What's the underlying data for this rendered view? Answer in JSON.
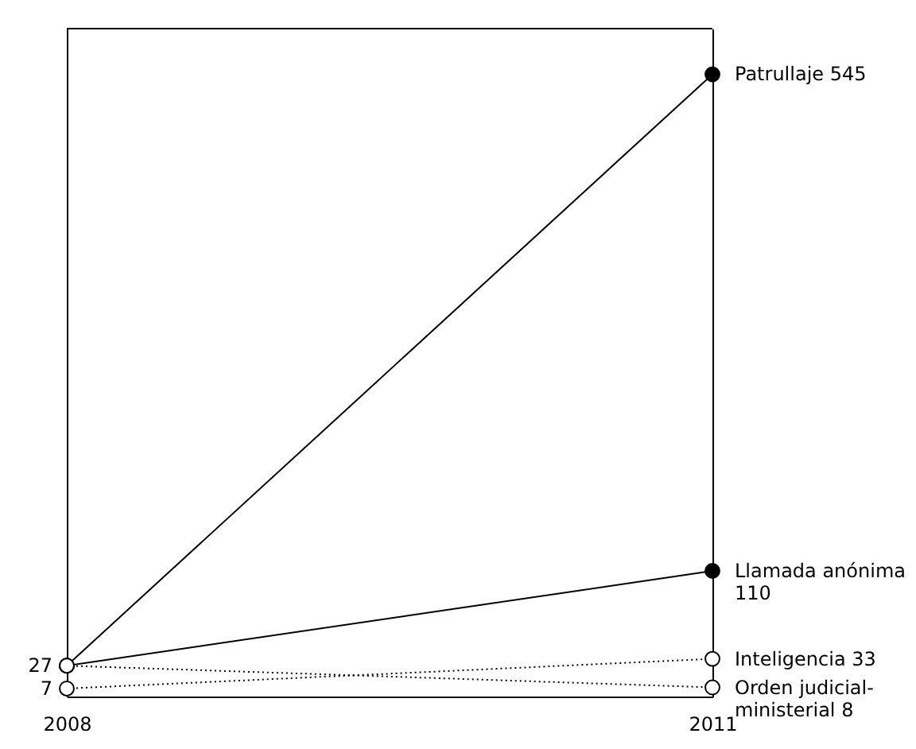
{
  "chart_data": {
    "type": "line",
    "categories": [
      "2008",
      "2011"
    ],
    "ylim": [
      0,
      585
    ],
    "tick_labels": "x",
    "grid": "x",
    "marker": "circle",
    "series": [
      {
        "name": "Patrullaje",
        "color": "#000000",
        "line_style": "solid",
        "values": [
          27,
          545
        ],
        "value_labels": [
          null,
          "545"
        ]
      },
      {
        "name": "Llamada anónima",
        "color": "#000000",
        "line_style": "solid",
        "values": [
          27,
          110
        ],
        "value_labels": [
          null,
          "110"
        ]
      },
      {
        "name": "Inteligencia",
        "color": "#000000",
        "line_style": "dotted",
        "values": [
          7,
          33
        ],
        "value_labels": [
          "7",
          "33"
        ]
      },
      {
        "name": "Orden judicial-ministerial",
        "color": "#000000",
        "line_style": "dotted",
        "values": [
          27,
          8
        ],
        "value_labels": [
          "27",
          "8"
        ]
      }
    ]
  }
}
